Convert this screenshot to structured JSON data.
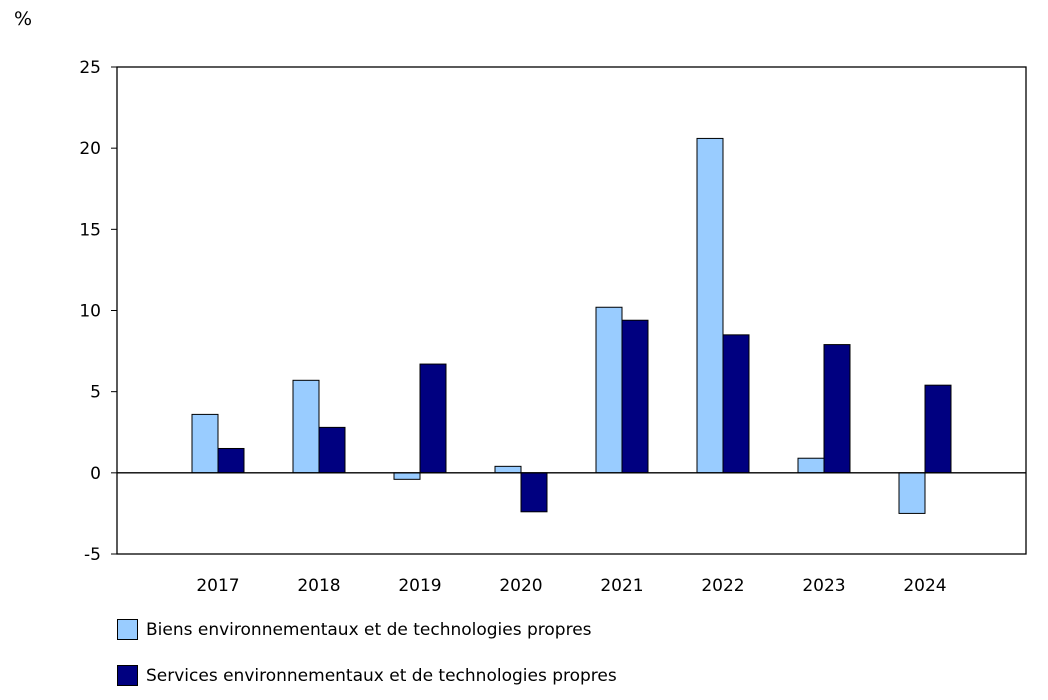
{
  "chart_data": {
    "type": "bar",
    "ylabel": "%",
    "ylim": [
      -5,
      25
    ],
    "yticks": [
      -5,
      0,
      5,
      10,
      15,
      20,
      25
    ],
    "grid": false,
    "legend_placement": "bottom",
    "categories": [
      "2017",
      "2018",
      "2019",
      "2020",
      "2021",
      "2022",
      "2023",
      "2024"
    ],
    "series": [
      {
        "name": "Biens environnementaux et de technologies propres",
        "color": "#99ccff",
        "values": [
          3.6,
          5.7,
          -0.4,
          0.4,
          10.2,
          20.6,
          0.9,
          -2.5
        ]
      },
      {
        "name": "Services environnementaux et de technologies propres",
        "color": "#000080",
        "values": [
          1.5,
          2.8,
          6.7,
          -2.4,
          9.4,
          8.5,
          7.9,
          5.4
        ]
      }
    ]
  }
}
